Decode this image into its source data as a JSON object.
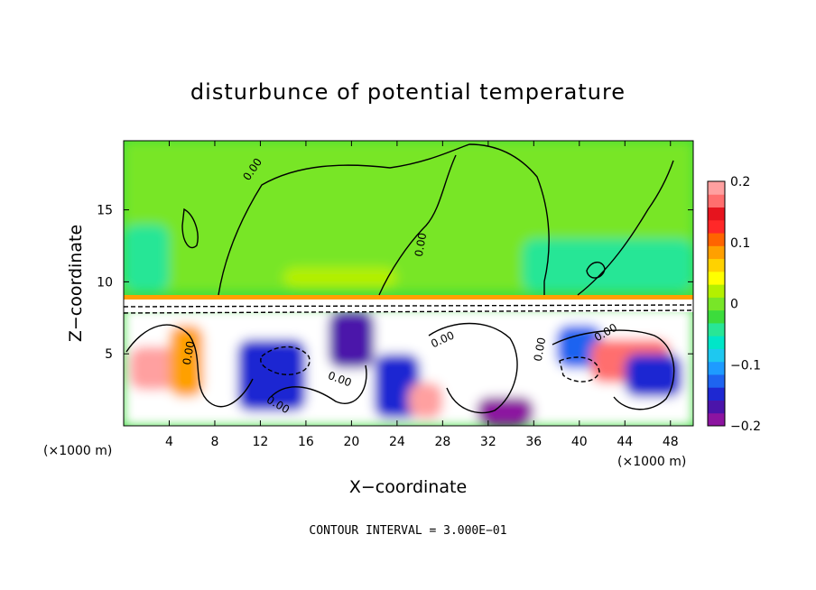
{
  "chart_data": {
    "type": "heatmap",
    "title": "disturbunce of potential temperature",
    "xlabel": "X−coordinate",
    "ylabel": "Z−coordinate",
    "x_unit": "(×1000 m)",
    "y_unit": "(×1000 m)",
    "xlim": [
      0,
      50
    ],
    "ylim": [
      0,
      19.8
    ],
    "x_ticks": [
      4,
      8,
      12,
      16,
      20,
      24,
      28,
      32,
      36,
      40,
      44,
      48
    ],
    "y_ticks": [
      5,
      10,
      15
    ],
    "colorbar": {
      "range": [
        -0.2,
        0.2
      ],
      "tick_values": [
        0.2,
        0.1,
        0,
        -0.1,
        -0.2
      ],
      "tick_labels": [
        "0.2",
        "0.1",
        "0",
        "−0.1",
        "−0.2"
      ],
      "colors": [
        "#8c14a0",
        "#4b14aa",
        "#1e28d2",
        "#1e64f0",
        "#1e9bff",
        "#1ec8f0",
        "#00e6c8",
        "#28e696",
        "#3cdc3c",
        "#78e628",
        "#b4f000",
        "#ffff00",
        "#ffd200",
        "#ffa000",
        "#ff6400",
        "#ff2828",
        "#e6141e",
        "#ff6e6e",
        "#ffa0a0"
      ]
    },
    "contour_labels": [
      "0.00",
      "0.00",
      "0.00",
      "0.00",
      "0.00",
      "0.00",
      "0.00",
      "0.00"
    ],
    "annotation": "CONTOUR INTERVAL = 3.000E−01",
    "field_regions": [
      {
        "x": [
          0,
          50
        ],
        "z": [
          9.3,
          19.8
        ],
        "value": 0.0
      },
      {
        "x": [
          0,
          4
        ],
        "z": [
          9.3,
          14
        ],
        "value": -0.05
      },
      {
        "x": [
          35,
          50
        ],
        "z": [
          9.3,
          13
        ],
        "value": -0.04
      },
      {
        "x": [
          14,
          24
        ],
        "z": [
          9.6,
          11
        ],
        "value": 0.03
      },
      {
        "x": [
          0,
          50
        ],
        "z": [
          0,
          8.2
        ],
        "value": 0.0
      },
      {
        "x": [
          0.5,
          4.5
        ],
        "z": [
          2.5,
          5.5
        ],
        "value": 0.18
      },
      {
        "x": [
          4,
          7
        ],
        "z": [
          2,
          7
        ],
        "value": 0.08
      },
      {
        "x": [
          10,
          16
        ],
        "z": [
          1,
          6
        ],
        "value": -0.15
      },
      {
        "x": [
          18,
          22
        ],
        "z": [
          4,
          8
        ],
        "value": -0.17
      },
      {
        "x": [
          22,
          26
        ],
        "z": [
          0.5,
          5
        ],
        "value": -0.15
      },
      {
        "x": [
          25,
          28
        ],
        "z": [
          0.5,
          3
        ],
        "value": 0.18
      },
      {
        "x": [
          31,
          36
        ],
        "z": [
          0,
          2
        ],
        "value": -0.2
      },
      {
        "x": [
          38,
          42
        ],
        "z": [
          4,
          7
        ],
        "value": -0.12
      },
      {
        "x": [
          41,
          48
        ],
        "z": [
          3,
          6
        ],
        "value": 0.16
      },
      {
        "x": [
          44,
          49
        ],
        "z": [
          2,
          5
        ],
        "value": -0.14
      }
    ]
  }
}
